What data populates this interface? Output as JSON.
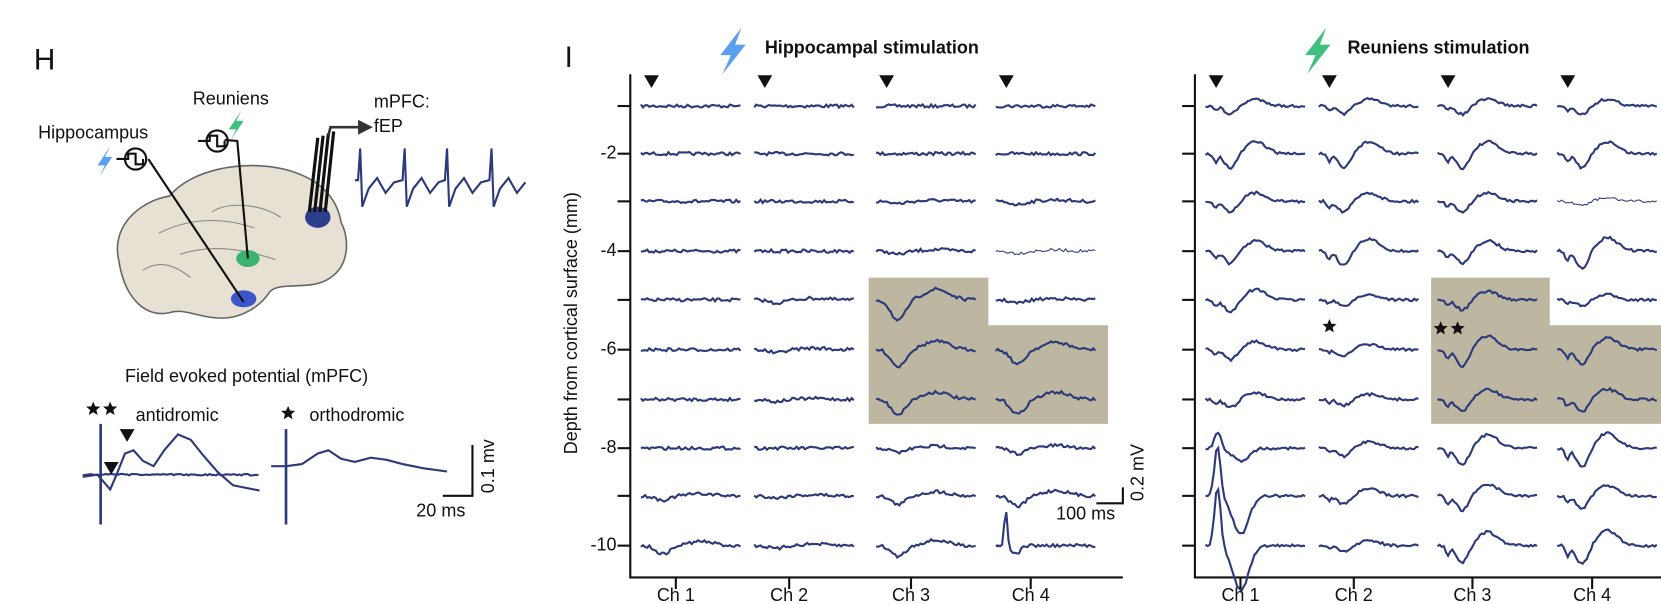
{
  "panel_h": {
    "label": "H",
    "hippocampus": "Hippocampus",
    "reuniens": "Reuniens",
    "mpfc_lines": [
      "mPFC:",
      "fEP"
    ],
    "fep_title": "Field evoked potential (mPFC)",
    "antidromic": "antidromic",
    "orthodromic": "orthodromic",
    "scale_y": "0.1 mv",
    "scale_x": "20 ms"
  },
  "panel_i": {
    "label": "I",
    "titles": [
      "Hippocampal stimulation",
      "Reuniens stimulation"
    ],
    "y_axis_label": "Depth  from cortical surface (mm)",
    "yticks": [
      "-2",
      "-4",
      "-6",
      "-8",
      "-10"
    ],
    "channels": [
      "Ch 1",
      "Ch 2",
      "Ch 3",
      "Ch 4"
    ],
    "scale_y": "0.2 mV",
    "scale_x": "100 ms"
  }
}
